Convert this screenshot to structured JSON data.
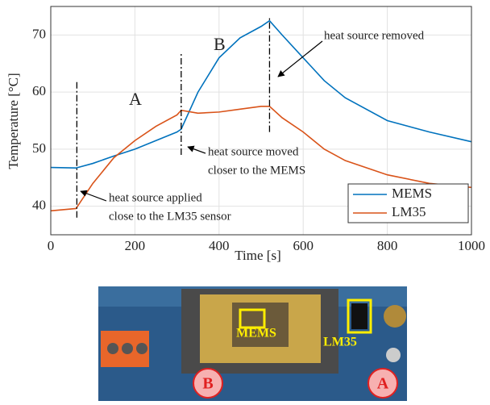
{
  "chart_data": {
    "type": "line",
    "xlabel": "Time [s]",
    "ylabel": "Temperature [°C]",
    "x": [
      0,
      60,
      100,
      150,
      200,
      250,
      300,
      310,
      350,
      400,
      450,
      500,
      520,
      550,
      600,
      650,
      700,
      800,
      900,
      1000
    ],
    "series": [
      {
        "name": "MEMS",
        "color": "#0072bd",
        "values": [
          46.8,
          46.7,
          47.5,
          48.8,
          50,
          51.5,
          53,
          53.5,
          60,
          66,
          69.5,
          71.5,
          72.5,
          70,
          66,
          62,
          59,
          55,
          53,
          51.3
        ]
      },
      {
        "name": "LM35",
        "color": "#d95319",
        "values": [
          39.2,
          39.6,
          44,
          48.5,
          51.5,
          54,
          56,
          56.8,
          56.3,
          56.5,
          57,
          57.5,
          57.5,
          55.5,
          53,
          50,
          48,
          45.5,
          44,
          43.3
        ]
      }
    ],
    "markers": [
      {
        "x": 62,
        "y": [
          38,
          62
        ]
      },
      {
        "x": 310,
        "y": [
          49,
          67
        ]
      },
      {
        "x": 520,
        "y": [
          53,
          73
        ]
      }
    ],
    "annotations": [
      {
        "text": [
          "A"
        ]
      },
      {
        "text": [
          "B"
        ]
      },
      {
        "text": [
          "heat source removed"
        ]
      },
      {
        "text": [
          "heat source moved",
          "closer to the MEMS"
        ]
      },
      {
        "text": [
          "heat source applied",
          "close to the LM35 sensor"
        ]
      }
    ],
    "xlim": [
      0,
      1000
    ],
    "xticks": [
      0,
      200,
      400,
      600,
      800,
      1000
    ],
    "ylim": [
      35,
      75
    ],
    "yticks": [
      40,
      50,
      60,
      70
    ],
    "grid": true,
    "legend": "lower right"
  },
  "photo": {
    "labels": [
      "MEMS",
      "LM35"
    ],
    "badges": [
      "B",
      "A"
    ]
  }
}
